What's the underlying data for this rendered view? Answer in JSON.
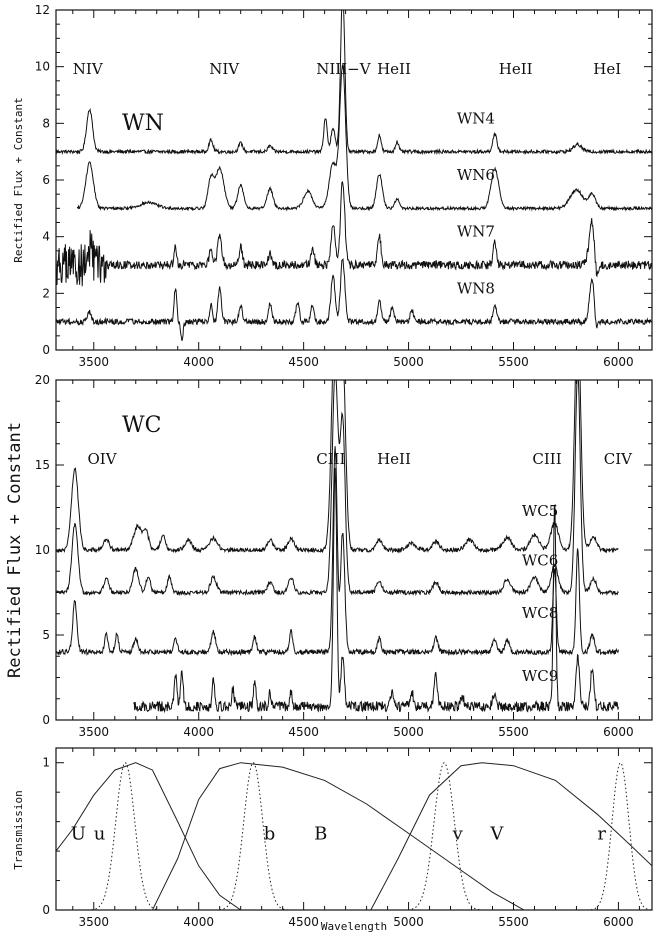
{
  "chart_data": [
    {
      "type": "line",
      "panel": "WN",
      "title": "WN",
      "xlabel": "",
      "ylabel": "Rectified Flux + Constant",
      "xlim": [
        3320,
        6160
      ],
      "ylim": [
        0,
        12
      ],
      "xticks": [
        3500,
        4000,
        4500,
        5000,
        5500,
        6000
      ],
      "yticks": [
        0,
        2,
        4,
        6,
        8,
        10,
        12
      ],
      "line_ids": [
        {
          "label": "NIV",
          "x": 3400
        },
        {
          "label": "NIV",
          "x": 4050
        },
        {
          "label": "NIII−V",
          "x": 4560
        },
        {
          "label": "HeII",
          "x": 4850
        },
        {
          "label": "HeII",
          "x": 5430
        },
        {
          "label": "HeI",
          "x": 5880
        }
      ],
      "series": [
        {
          "name": "WN4",
          "offset": 7,
          "label_x": 5230,
          "label_y": 8.0,
          "x_start": 3320,
          "noise": 0.06,
          "lines": [
            [
              3480,
              1.5,
              14
            ],
            [
              4058,
              0.4,
              10
            ],
            [
              4200,
              0.3,
              10
            ],
            [
              4340,
              0.2,
              10
            ],
            [
              4604,
              1.2,
              8
            ],
            [
              4640,
              0.8,
              10
            ],
            [
              4686,
              5.6,
              10
            ],
            [
              4861,
              0.6,
              8
            ],
            [
              4945,
              0.35,
              8
            ],
            [
              5411,
              0.6,
              10
            ],
            [
              5805,
              0.25,
              20
            ]
          ]
        },
        {
          "name": "WN6",
          "offset": 5,
          "label_x": 5230,
          "label_y": 6.0,
          "x_start": 3420,
          "noise": 0.05,
          "lines": [
            [
              3480,
              1.6,
              18
            ],
            [
              3760,
              0.2,
              40
            ],
            [
              4058,
              1.0,
              14
            ],
            [
              4100,
              1.4,
              20
            ],
            [
              4200,
              0.8,
              14
            ],
            [
              4340,
              0.7,
              14
            ],
            [
              4520,
              0.6,
              20
            ],
            [
              4640,
              1.6,
              18
            ],
            [
              4686,
              5.0,
              14
            ],
            [
              4861,
              1.2,
              14
            ],
            [
              4945,
              0.35,
              10
            ],
            [
              5411,
              1.4,
              18
            ],
            [
              5800,
              0.65,
              30
            ],
            [
              5875,
              0.5,
              16
            ]
          ]
        },
        {
          "name": "WN7",
          "offset": 3,
          "label_x": 5230,
          "label_y": 4.0,
          "x_start": 3320,
          "noise": 0.15,
          "noisy_blue_end": 3560,
          "lines": [
            [
              3480,
              0.6,
              10
            ],
            [
              3889,
              0.6,
              6
            ],
            [
              4058,
              0.6,
              8
            ],
            [
              4100,
              1.0,
              10
            ],
            [
              4200,
              0.6,
              8
            ],
            [
              4340,
              0.4,
              8
            ],
            [
              4542,
              0.6,
              8
            ],
            [
              4640,
              1.4,
              10
            ],
            [
              4686,
              3.0,
              10
            ],
            [
              4861,
              1.0,
              8
            ],
            [
              5411,
              0.8,
              8
            ],
            [
              5875,
              1.6,
              14
            ],
            [
              5895,
              -0.8,
              10
            ]
          ]
        },
        {
          "name": "WN8",
          "offset": 1,
          "label_x": 5230,
          "label_y": 2.0,
          "x_start": 3320,
          "noise": 0.1,
          "lines": [
            [
              3480,
              0.4,
              8
            ],
            [
              3889,
              1.2,
              6
            ],
            [
              3920,
              -0.6,
              6
            ],
            [
              4058,
              0.6,
              6
            ],
            [
              4100,
              1.2,
              8
            ],
            [
              4200,
              0.6,
              8
            ],
            [
              4340,
              0.6,
              8
            ],
            [
              4471,
              0.7,
              8
            ],
            [
              4542,
              0.6,
              8
            ],
            [
              4640,
              1.6,
              10
            ],
            [
              4686,
              2.2,
              10
            ],
            [
              4861,
              0.8,
              8
            ],
            [
              4922,
              0.5,
              8
            ],
            [
              5016,
              0.4,
              8
            ],
            [
              5411,
              0.6,
              8
            ],
            [
              5875,
              1.6,
              12
            ],
            [
              5892,
              -0.6,
              8
            ]
          ]
        }
      ]
    },
    {
      "type": "line",
      "panel": "WC",
      "title": "WC",
      "xlabel": "",
      "ylabel": "Rectified Flux + Constant",
      "xlim": [
        3320,
        6160
      ],
      "ylim": [
        0,
        20
      ],
      "xticks": [
        3500,
        4000,
        4500,
        5000,
        5500,
        6000
      ],
      "yticks": [
        0,
        5,
        10,
        15,
        20
      ],
      "line_ids": [
        {
          "label": "OIV",
          "x": 3470
        },
        {
          "label": "CIII",
          "x": 4560
        },
        {
          "label": "HeII",
          "x": 4850
        },
        {
          "label": "CIII",
          "x": 5590
        },
        {
          "label": "CIV",
          "x": 5930
        }
      ],
      "series": [
        {
          "name": "WC5",
          "offset": 10,
          "label_x": 5540,
          "label_y": 12.0,
          "x_start": 3320,
          "x_end": 6000,
          "noise": 0.12,
          "lines": [
            [
              3410,
              4.8,
              16
            ],
            [
              3560,
              0.6,
              14
            ],
            [
              3710,
              1.4,
              20
            ],
            [
              3750,
              1.0,
              12
            ],
            [
              3830,
              0.8,
              12
            ],
            [
              3950,
              0.6,
              16
            ],
            [
              4070,
              0.7,
              18
            ],
            [
              4340,
              0.6,
              14
            ],
            [
              4440,
              0.7,
              14
            ],
            [
              4650,
              14.0,
              16
            ],
            [
              4686,
              11.0,
              14
            ],
            [
              4860,
              0.6,
              14
            ],
            [
              5016,
              0.4,
              20
            ],
            [
              5130,
              0.5,
              16
            ],
            [
              5290,
              0.6,
              20
            ],
            [
              5470,
              0.7,
              20
            ],
            [
              5600,
              0.9,
              20
            ],
            [
              5696,
              1.6,
              18
            ],
            [
              5806,
              14.0,
              14
            ],
            [
              5880,
              0.8,
              16
            ]
          ]
        },
        {
          "name": "WC6",
          "offset": 7.5,
          "label_x": 5540,
          "label_y": 9.1,
          "x_start": 3320,
          "x_end": 6000,
          "noise": 0.12,
          "lines": [
            [
              3410,
              4.0,
              14
            ],
            [
              3560,
              0.8,
              12
            ],
            [
              3700,
              1.4,
              14
            ],
            [
              3760,
              1.0,
              10
            ],
            [
              3860,
              0.9,
              10
            ],
            [
              4070,
              0.9,
              14
            ],
            [
              4340,
              0.6,
              12
            ],
            [
              4440,
              0.9,
              12
            ],
            [
              4650,
              13.0,
              14
            ],
            [
              4686,
              10.0,
              12
            ],
            [
              4860,
              0.7,
              12
            ],
            [
              5130,
              0.6,
              14
            ],
            [
              5470,
              0.8,
              16
            ],
            [
              5600,
              0.9,
              18
            ],
            [
              5696,
              1.6,
              16
            ],
            [
              5806,
              13.0,
              12
            ],
            [
              5880,
              0.8,
              14
            ]
          ]
        },
        {
          "name": "WC8",
          "offset": 4.0,
          "label_x": 5540,
          "label_y": 6.0,
          "x_start": 3320,
          "x_end": 6000,
          "noise": 0.15,
          "lines": [
            [
              3410,
              3.0,
              10
            ],
            [
              3560,
              1.0,
              8
            ],
            [
              3610,
              1.0,
              8
            ],
            [
              3700,
              0.8,
              10
            ],
            [
              3890,
              0.8,
              8
            ],
            [
              4070,
              1.2,
              10
            ],
            [
              4267,
              0.9,
              8
            ],
            [
              4440,
              1.2,
              8
            ],
            [
              4650,
              12.0,
              10
            ],
            [
              4686,
              7.0,
              10
            ],
            [
              4860,
              0.8,
              8
            ],
            [
              5130,
              0.8,
              10
            ],
            [
              5410,
              0.8,
              10
            ],
            [
              5470,
              0.7,
              10
            ],
            [
              5696,
              5.0,
              8
            ],
            [
              5806,
              6.0,
              8
            ],
            [
              5875,
              1.0,
              10
            ]
          ]
        },
        {
          "name": "WC9",
          "offset": 0.8,
          "label_x": 5540,
          "label_y": 2.3,
          "x_start": 3690,
          "x_end": 6000,
          "noise": 0.3,
          "lines": [
            [
              3890,
              1.8,
              6
            ],
            [
              3920,
              2.0,
              6
            ],
            [
              4070,
              1.6,
              6
            ],
            [
              4163,
              1.0,
              6
            ],
            [
              4267,
              1.4,
              6
            ],
            [
              4340,
              0.8,
              6
            ],
            [
              4440,
              0.8,
              6
            ],
            [
              4650,
              14.0,
              8
            ],
            [
              4686,
              3.0,
              8
            ],
            [
              4921,
              0.8,
              6
            ],
            [
              5016,
              0.9,
              6
            ],
            [
              5130,
              1.8,
              8
            ],
            [
              5255,
              0.6,
              8
            ],
            [
              5410,
              0.7,
              8
            ],
            [
              5696,
              12.0,
              6
            ],
            [
              5806,
              3.0,
              8
            ],
            [
              5875,
              2.2,
              8
            ]
          ]
        }
      ]
    },
    {
      "type": "line",
      "panel": "filters",
      "title": "",
      "xlabel": "Wavelength",
      "ylabel": "Transmission",
      "xlim": [
        3320,
        6160
      ],
      "ylim": [
        0,
        1.1
      ],
      "xticks": [
        3500,
        4000,
        4500,
        5000,
        5500,
        6000
      ],
      "yticks": [
        0,
        1
      ],
      "series": [
        {
          "name": "U",
          "style": "solid",
          "label_x": 3390,
          "label_y": 0.48,
          "points": [
            [
              3320,
              0.4
            ],
            [
              3400,
              0.55
            ],
            [
              3500,
              0.78
            ],
            [
              3600,
              0.95
            ],
            [
              3700,
              1.0
            ],
            [
              3780,
              0.95
            ],
            [
              3900,
              0.6
            ],
            [
              4000,
              0.3
            ],
            [
              4100,
              0.1
            ],
            [
              4200,
              0.0
            ]
          ]
        },
        {
          "name": "u",
          "style": "dotted",
          "label_x": 3500,
          "label_y": 0.48,
          "center": 3650,
          "width": 45
        },
        {
          "name": "B",
          "style": "solid",
          "label_x": 4550,
          "label_y": 0.48,
          "points": [
            [
              3780,
              0.0
            ],
            [
              3900,
              0.35
            ],
            [
              4000,
              0.75
            ],
            [
              4100,
              0.96
            ],
            [
              4200,
              1.0
            ],
            [
              4400,
              0.97
            ],
            [
              4600,
              0.88
            ],
            [
              4800,
              0.72
            ],
            [
              5000,
              0.52
            ],
            [
              5200,
              0.32
            ],
            [
              5400,
              0.12
            ],
            [
              5550,
              0.0
            ]
          ]
        },
        {
          "name": "b",
          "style": "dotted",
          "label_x": 4310,
          "label_y": 0.48,
          "center": 4260,
          "width": 45
        },
        {
          "name": "v",
          "style": "dotted",
          "label_x": 5210,
          "label_y": 0.48,
          "center": 5170,
          "width": 48
        },
        {
          "name": "V",
          "style": "solid",
          "label_x": 5390,
          "label_y": 0.48,
          "points": [
            [
              4820,
              0.0
            ],
            [
              4950,
              0.35
            ],
            [
              5100,
              0.78
            ],
            [
              5250,
              0.98
            ],
            [
              5350,
              1.0
            ],
            [
              5500,
              0.98
            ],
            [
              5700,
              0.88
            ],
            [
              5900,
              0.65
            ],
            [
              6050,
              0.45
            ],
            [
              6160,
              0.3
            ]
          ]
        },
        {
          "name": "r",
          "style": "dotted",
          "label_x": 5900,
          "label_y": 0.48,
          "center": 6010,
          "width": 40
        }
      ]
    }
  ]
}
